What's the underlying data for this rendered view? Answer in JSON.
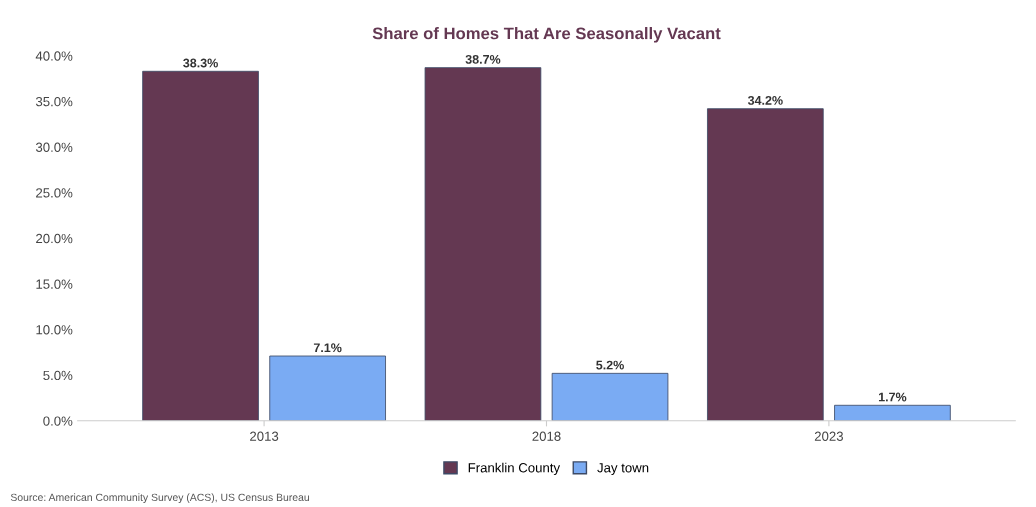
{
  "chart_data": {
    "type": "bar",
    "title": "Share of Homes That Are Seasonally Vacant",
    "categories": [
      "2013",
      "2018",
      "2023"
    ],
    "series": [
      {
        "name": "Franklin County",
        "color": "#643852",
        "values": [
          38.3,
          38.7,
          34.2
        ],
        "value_labels": [
          "38.3%",
          "38.7%",
          "34.2%"
        ]
      },
      {
        "name": "Jay town",
        "color": "#7aabf3",
        "values": [
          7.1,
          5.2,
          1.7
        ],
        "value_labels": [
          "7.1%",
          "5.2%",
          "1.7%"
        ]
      }
    ],
    "ylim": [
      0,
      40
    ],
    "yticks": [
      {
        "value": 0,
        "label": "0.0%"
      },
      {
        "value": 5,
        "label": "5.0%"
      },
      {
        "value": 10,
        "label": "10.0%"
      },
      {
        "value": 15,
        "label": "15.0%"
      },
      {
        "value": 20,
        "label": "20.0%"
      },
      {
        "value": 25,
        "label": "25.0%"
      },
      {
        "value": 30,
        "label": "30.0%"
      },
      {
        "value": 35,
        "label": "35.0%"
      },
      {
        "value": 40,
        "label": "40.0%"
      }
    ],
    "grid": false,
    "legend": "bottom",
    "annotations": [
      "Source: American Community Survey (ACS), US Census Bureau"
    ]
  }
}
